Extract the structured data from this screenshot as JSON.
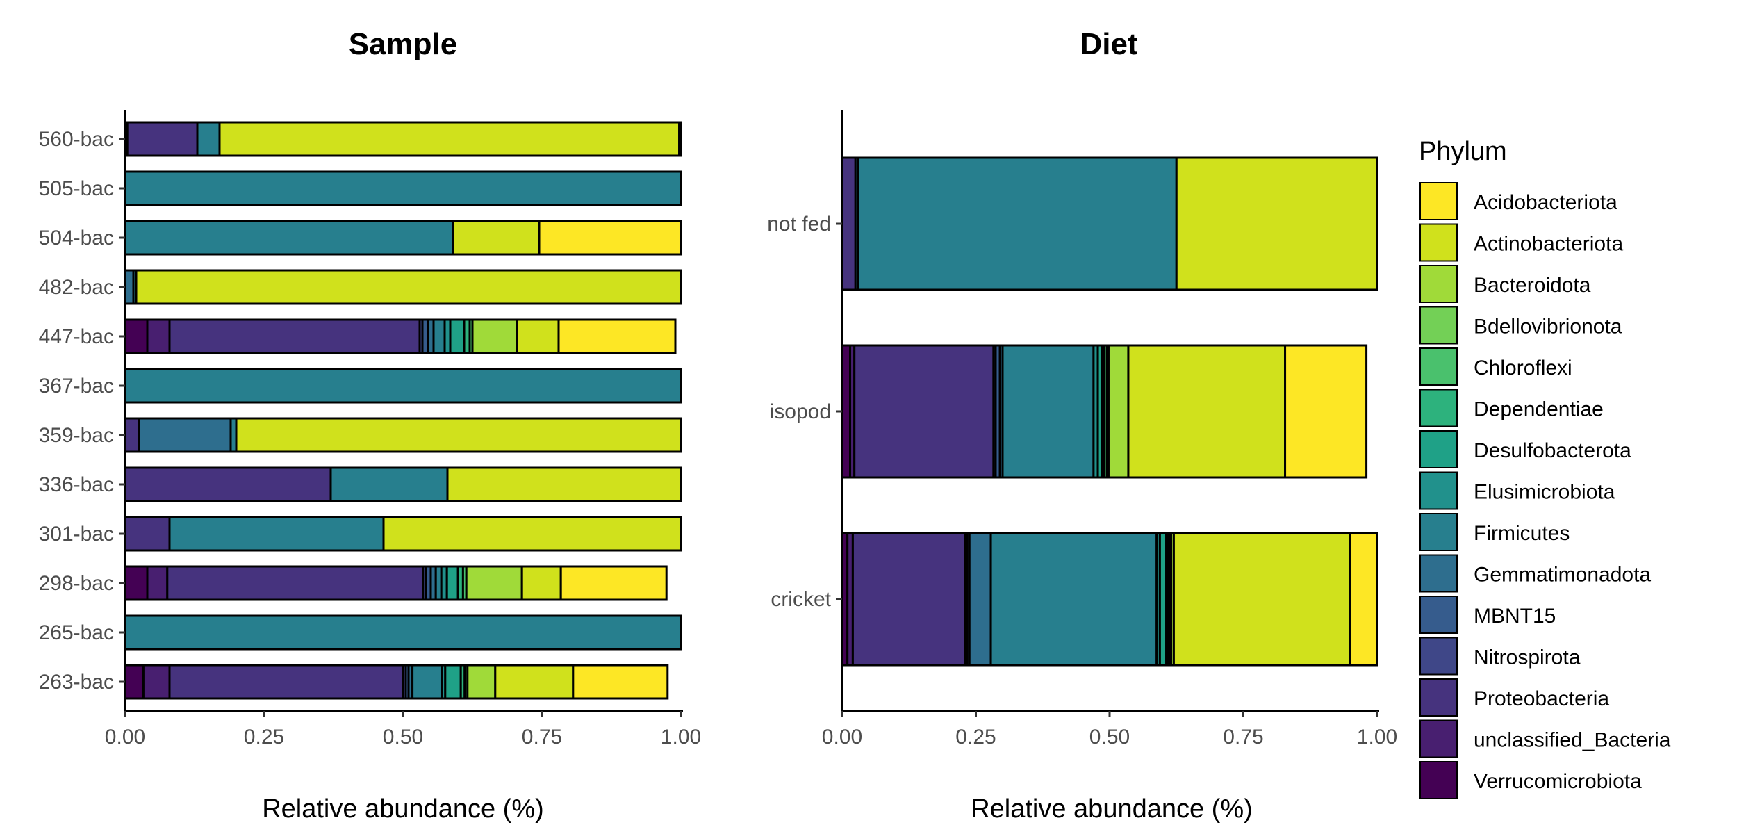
{
  "phyla_order": [
    "Verrucomicrobiota",
    "unclassified_Bacteria",
    "Proteobacteria",
    "Nitrospirota",
    "MBNT15",
    "Gemmatimonadota",
    "Firmicutes",
    "Elusimicrobiota",
    "Desulfobacterota",
    "Dependentiae",
    "Chloroflexi",
    "Bdellovibrionota",
    "Bacteroidota",
    "Actinobacteriota",
    "Acidobacteriota"
  ],
  "colors": {
    "Acidobacteriota": "#FDE725",
    "Actinobacteriota": "#D0E11C",
    "Bacteroidota": "#A0DA39",
    "Bdellovibrionota": "#73D056",
    "Chloroflexi": "#4AC16D",
    "Dependentiae": "#2DB27D",
    "Desulfobacterota": "#1FA187",
    "Elusimicrobiota": "#21918C",
    "Firmicutes": "#277F8E",
    "Gemmatimonadota": "#2E6E8E",
    "MBNT15": "#365C8D",
    "Nitrospirota": "#3F4788",
    "Proteobacteria": "#46337E",
    "unclassified_Bacteria": "#481F70",
    "Verrucomicrobiota": "#440154"
  },
  "legend": {
    "title": "Phylum",
    "items": [
      "Acidobacteriota",
      "Actinobacteriota",
      "Bacteroidota",
      "Bdellovibrionota",
      "Chloroflexi",
      "Dependentiae",
      "Desulfobacterota",
      "Elusimicrobiota",
      "Firmicutes",
      "Gemmatimonadota",
      "MBNT15",
      "Nitrospirota",
      "Proteobacteria",
      "unclassified_Bacteria",
      "Verrucomicrobiota"
    ]
  },
  "chart_data": [
    {
      "type": "bar",
      "orientation": "horizontal",
      "stacked": true,
      "title": "Sample",
      "xlabel": "Relative abundance (%)",
      "ylabel": "",
      "xlim": [
        0,
        1
      ],
      "x_ticks": [
        "0.00",
        "0.25",
        "0.50",
        "0.75",
        "1.00"
      ],
      "categories": [
        "560-bac",
        "505-bac",
        "504-bac",
        "482-bac",
        "447-bac",
        "367-bac",
        "359-bac",
        "336-bac",
        "301-bac",
        "298-bac",
        "265-bac",
        "263-bac"
      ],
      "series": [
        {
          "name": "Verrucomicrobiota",
          "values": [
            0.004,
            0,
            0,
            0,
            0.04,
            0,
            0,
            0,
            0,
            0.04,
            0,
            0.033
          ]
        },
        {
          "name": "unclassified_Bacteria",
          "values": [
            0,
            0,
            0,
            0,
            0.04,
            0,
            0,
            0,
            0,
            0.036,
            0,
            0.047
          ]
        },
        {
          "name": "Proteobacteria",
          "values": [
            0.126,
            0,
            0,
            0,
            0.45,
            0,
            0.025,
            0.37,
            0.08,
            0.46,
            0,
            0.42
          ]
        },
        {
          "name": "Nitrospirota",
          "values": [
            0,
            0,
            0,
            0,
            0.005,
            0,
            0,
            0,
            0,
            0.005,
            0,
            0.005
          ]
        },
        {
          "name": "MBNT15",
          "values": [
            0,
            0,
            0,
            0,
            0.01,
            0,
            0,
            0,
            0,
            0.009,
            0,
            0.005
          ]
        },
        {
          "name": "Gemmatimonadota",
          "values": [
            0,
            0,
            0,
            0.015,
            0.01,
            0,
            0.165,
            0,
            0,
            0.009,
            0,
            0.007
          ]
        },
        {
          "name": "Firmicutes",
          "values": [
            0.04,
            1.0,
            0.59,
            0.005,
            0.02,
            1.0,
            0.01,
            0.21,
            0.385,
            0.01,
            1.0,
            0.053
          ]
        },
        {
          "name": "Elusimicrobiota",
          "values": [
            0,
            0,
            0,
            0,
            0.01,
            0,
            0,
            0,
            0,
            0.01,
            0,
            0.006
          ]
        },
        {
          "name": "Desulfobacterota",
          "values": [
            0,
            0,
            0,
            0,
            0.025,
            0,
            0,
            0,
            0,
            0.02,
            0,
            0.028
          ]
        },
        {
          "name": "Dependentiae",
          "values": [
            0,
            0,
            0,
            0,
            0.01,
            0,
            0,
            0,
            0,
            0.009,
            0,
            0.007
          ]
        },
        {
          "name": "Chloroflexi",
          "values": [
            0,
            0,
            0,
            0,
            0.005,
            0,
            0,
            0,
            0,
            0.006,
            0,
            0.005
          ]
        },
        {
          "name": "Bdellovibrionota",
          "values": [
            0,
            0,
            0,
            0,
            0,
            0,
            0,
            0,
            0,
            0,
            0,
            0
          ]
        },
        {
          "name": "Bacteroidota",
          "values": [
            0,
            0,
            0,
            0,
            0.08,
            0,
            0,
            0,
            0,
            0.1,
            0,
            0.05
          ]
        },
        {
          "name": "Actinobacteriota",
          "values": [
            0.827,
            0,
            0.155,
            0.98,
            0.075,
            0,
            0.8,
            0.42,
            0.535,
            0.07,
            0,
            0.14
          ]
        },
        {
          "name": "Acidobacteriota",
          "values": [
            0.003,
            0,
            0.255,
            0,
            0.21,
            0,
            0,
            0,
            0,
            0.19,
            0,
            0.17
          ]
        }
      ]
    },
    {
      "type": "bar",
      "orientation": "horizontal",
      "stacked": true,
      "title": "Diet",
      "xlabel": "Relative abundance (%)",
      "ylabel": "",
      "xlim": [
        0,
        1
      ],
      "x_ticks": [
        "0.00",
        "0.25",
        "0.50",
        "0.75",
        "1.00"
      ],
      "categories": [
        "not fed",
        "isopod",
        "cricket"
      ],
      "series": [
        {
          "name": "Verrucomicrobiota",
          "values": [
            0,
            0.015,
            0.01
          ]
        },
        {
          "name": "unclassified_Bacteria",
          "values": [
            0,
            0.008,
            0.01
          ]
        },
        {
          "name": "Proteobacteria",
          "values": [
            0.025,
            0.26,
            0.21
          ]
        },
        {
          "name": "Nitrospirota",
          "values": [
            0,
            0.004,
            0.004
          ]
        },
        {
          "name": "MBNT15",
          "values": [
            0,
            0.008,
            0.004
          ]
        },
        {
          "name": "Gemmatimonadota",
          "values": [
            0.005,
            0.005,
            0.04
          ]
        },
        {
          "name": "Firmicutes",
          "values": [
            0.595,
            0.17,
            0.31
          ]
        },
        {
          "name": "Elusimicrobiota",
          "values": [
            0,
            0.008,
            0.006
          ]
        },
        {
          "name": "Desulfobacterota",
          "values": [
            0,
            0.008,
            0.012
          ]
        },
        {
          "name": "Dependentiae",
          "values": [
            0,
            0.004,
            0.003
          ]
        },
        {
          "name": "Chloroflexi",
          "values": [
            0,
            0.005,
            0.003
          ]
        },
        {
          "name": "Bdellovibrionota",
          "values": [
            0,
            0.003,
            0.003
          ]
        },
        {
          "name": "Bacteroidota",
          "values": [
            0,
            0.037,
            0.005
          ]
        },
        {
          "name": "Actinobacteriota",
          "values": [
            0.375,
            0.293,
            0.33
          ]
        },
        {
          "name": "Acidobacteriota",
          "values": [
            0,
            0.152,
            0.05
          ]
        }
      ]
    }
  ]
}
